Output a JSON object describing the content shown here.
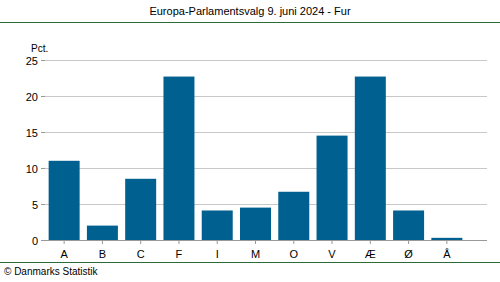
{
  "chart_data": {
    "type": "bar",
    "title": "Europa-Parlamentsvalg 9. juni 2024 - Fur",
    "ylabel": "Pct.",
    "annotations": [
      "© Danmarks Statistik"
    ],
    "categories": [
      "A",
      "B",
      "C",
      "F",
      "I",
      "M",
      "O",
      "V",
      "Æ",
      "Ø",
      "Å"
    ],
    "values": [
      11.0,
      2.0,
      8.5,
      22.7,
      4.1,
      4.5,
      6.7,
      14.5,
      22.7,
      4.1,
      0.3
    ],
    "color": "#006191",
    "ylim": [
      0,
      25
    ],
    "yticks": [
      0,
      5,
      10,
      15,
      20,
      25
    ],
    "grid": true
  }
}
